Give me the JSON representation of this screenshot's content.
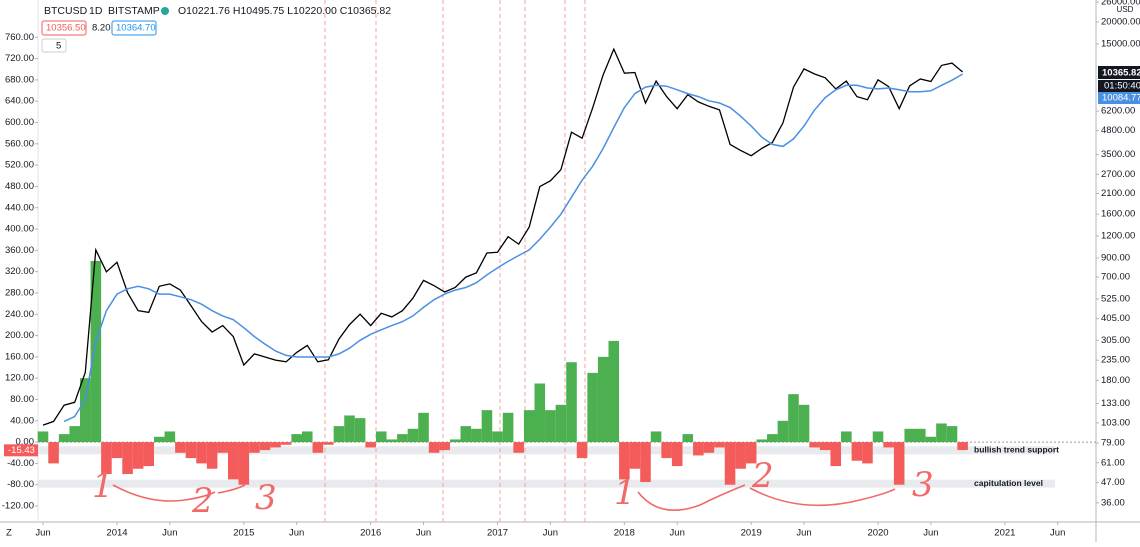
{
  "header": {
    "symbol": "BTCUSD",
    "interval": "1D",
    "exchange": "BITSTAMP",
    "ohlc": "O10221.76 H10495.75 L10220.00 C10365.82",
    "bid": "10356.50",
    "spread": "8.20",
    "ask": "10364.70",
    "indicator_count": "5"
  },
  "price_tags": {
    "last_price": "10365.82",
    "countdown": "01:50:40",
    "ma_value": "10084.77",
    "currency": "USD",
    "scale_mode": "Z"
  },
  "chart_data": {
    "type": "line",
    "categories": [
      "Jun",
      null,
      null,
      null,
      null,
      null,
      null,
      "2014",
      null,
      null,
      null,
      null,
      "Jun",
      null,
      null,
      null,
      null,
      null,
      null,
      "2015",
      null,
      null,
      null,
      null,
      "Jun",
      null,
      null,
      null,
      null,
      null,
      null,
      "2016",
      null,
      null,
      null,
      null,
      "Jun",
      null,
      null,
      null,
      null,
      null,
      null,
      "2017",
      null,
      null,
      null,
      null,
      "Jun",
      null,
      null,
      null,
      null,
      null,
      null,
      "2018",
      null,
      null,
      null,
      null,
      "Jun",
      null,
      null,
      null,
      null,
      null,
      null,
      "2019",
      null,
      null,
      null,
      null,
      "Jun",
      null,
      null,
      null,
      null,
      null,
      null,
      "2020",
      null,
      null,
      null,
      null,
      "Jun",
      null,
      null,
      null,
      null,
      null,
      null,
      "2021",
      null,
      null,
      null,
      null,
      "Jun"
    ],
    "series": [
      {
        "type": "bar",
        "axis": "y",
        "positive_color": "#4caf50",
        "negative_color": "#f45b5b",
        "values": [
          20,
          -40,
          15,
          30,
          120,
          340,
          -60,
          -30,
          -60,
          -50,
          -45,
          10,
          20,
          -20,
          -30,
          -40,
          -50,
          -20,
          -70,
          -80,
          -20,
          -15,
          -10,
          -5,
          15,
          20,
          -20,
          -5,
          30,
          50,
          45,
          -10,
          20,
          5,
          15,
          25,
          55,
          -20,
          -15,
          5,
          30,
          25,
          60,
          20,
          55,
          -20,
          60,
          110,
          60,
          70,
          150,
          -30,
          130,
          160,
          190,
          -70,
          -50,
          -75,
          20,
          -30,
          -45,
          15,
          -25,
          -20,
          -10,
          -80,
          -50,
          -40,
          5,
          15,
          40,
          90,
          70,
          -10,
          -15,
          -45,
          20,
          -35,
          -40,
          20,
          -10,
          -80,
          25,
          25,
          10,
          35,
          30,
          -15,
          null,
          null,
          null,
          null,
          null,
          null,
          null,
          null,
          null
        ]
      },
      {
        "type": "line",
        "axis": "y2",
        "color": "#000000",
        "values": [
          100,
          105,
          130,
          135,
          200,
          1000,
          750,
          850,
          570,
          450,
          440,
          620,
          640,
          590,
          480,
          390,
          340,
          370,
          320,
          220,
          255,
          245,
          235,
          230,
          260,
          285,
          230,
          236,
          310,
          375,
          430,
          370,
          435,
          415,
          450,
          530,
          670,
          625,
          575,
          610,
          700,
          740,
          960,
          970,
          1190,
          1080,
          1350,
          2300,
          2480,
          2870,
          4700,
          4340,
          6450,
          10000,
          14000,
          10200,
          10300,
          6900,
          9200,
          7500,
          6400,
          7700,
          7000,
          6600,
          6300,
          4000,
          3700,
          3450,
          3800,
          4100,
          5300,
          8500,
          10800,
          10100,
          9600,
          8300,
          9200,
          7500,
          7200,
          9350,
          8550,
          6400,
          8650,
          9450,
          9150,
          11300,
          11650,
          10365,
          null,
          null,
          null,
          null,
          null,
          null,
          null,
          null,
          null
        ]
      },
      {
        "type": "line",
        "axis": "y2",
        "color": "#4a90e2",
        "values": [
          null,
          null,
          105,
          112,
          140,
          300,
          450,
          560,
          600,
          620,
          600,
          560,
          560,
          540,
          520,
          490,
          450,
          420,
          400,
          360,
          320,
          290,
          265,
          250,
          245,
          245,
          245,
          245,
          255,
          275,
          305,
          330,
          350,
          370,
          390,
          420,
          470,
          520,
          560,
          590,
          610,
          650,
          720,
          790,
          860,
          930,
          1000,
          1150,
          1350,
          1600,
          2000,
          2500,
          3000,
          3800,
          5000,
          6500,
          7800,
          8500,
          8700,
          8600,
          8200,
          7800,
          7500,
          7100,
          6900,
          6500,
          5800,
          5100,
          4400,
          4000,
          3900,
          4300,
          5100,
          6300,
          7400,
          8200,
          8700,
          8700,
          8400,
          8300,
          8400,
          8200,
          8000,
          8000,
          8100,
          8700,
          9300,
          10084,
          null,
          null,
          null,
          null,
          null,
          null,
          null,
          null,
          null
        ]
      }
    ],
    "ylim": [
      -150,
      830
    ],
    "yticks": [
      {
        "value": 760,
        "label": "760.00"
      },
      {
        "value": 720,
        "label": "720.00"
      },
      {
        "value": 680,
        "label": "680.00"
      },
      {
        "value": 640,
        "label": "640.00"
      },
      {
        "value": 600,
        "label": "600.00"
      },
      {
        "value": 560,
        "label": "560.00"
      },
      {
        "value": 520,
        "label": "520.00"
      },
      {
        "value": 480,
        "label": "480.00"
      },
      {
        "value": 440,
        "label": "440.00"
      },
      {
        "value": 400,
        "label": "400.00"
      },
      {
        "value": 360,
        "label": "360.00"
      },
      {
        "value": 320,
        "label": "320.00"
      },
      {
        "value": 280,
        "label": "280.00"
      },
      {
        "value": 240,
        "label": "240.00"
      },
      {
        "value": 200,
        "label": "200.00"
      },
      {
        "value": 160,
        "label": "160.00"
      },
      {
        "value": 120,
        "label": "120.00"
      },
      {
        "value": 80,
        "label": "80.00"
      },
      {
        "value": 40,
        "label": "40.00"
      },
      {
        "value": 0,
        "label": "0.00"
      },
      {
        "value": -40,
        "label": "-40.00"
      },
      {
        "value": -80,
        "label": "-80.00"
      },
      {
        "value": -120,
        "label": "-120.00"
      }
    ],
    "y2lim": [
      28,
      26700
    ],
    "y2_log": true,
    "y2ticks": [
      {
        "value": 26000,
        "label": "26000.00"
      },
      {
        "value": 20000,
        "label": "20000.00"
      },
      {
        "value": 15000,
        "label": "15000.00"
      },
      {
        "value": 6200,
        "label": "6200.00"
      },
      {
        "value": 4800,
        "label": "4800.00"
      },
      {
        "value": 3500,
        "label": "3500.00"
      },
      {
        "value": 2700,
        "label": "2700.00"
      },
      {
        "value": 2100,
        "label": "2100.00"
      },
      {
        "value": 1600,
        "label": "1600.00"
      },
      {
        "value": 1200,
        "label": "1200.00"
      },
      {
        "value": 900,
        "label": "900.00"
      },
      {
        "value": 700,
        "label": "700.00"
      },
      {
        "value": 525,
        "label": "525.00"
      },
      {
        "value": 405,
        "label": "405.00"
      },
      {
        "value": 305,
        "label": "305.00"
      },
      {
        "value": 235,
        "label": "235.00"
      },
      {
        "value": 180,
        "label": "180.00"
      },
      {
        "value": 133,
        "label": "133.00"
      },
      {
        "value": 103,
        "label": "103.00"
      },
      {
        "value": 79,
        "label": "79.00"
      },
      {
        "value": 61,
        "label": "61.00"
      },
      {
        "value": 47,
        "label": "47.00"
      },
      {
        "value": 36,
        "label": "36.00"
      }
    ],
    "levels": [
      {
        "name": "bullish trend support",
        "value": -15.43,
        "color": "#f45b5b"
      },
      {
        "name": "capitulation level",
        "value": -78
      }
    ],
    "handwritten_labels": [
      "1",
      "2",
      "3",
      "1",
      "2",
      "3"
    ]
  }
}
